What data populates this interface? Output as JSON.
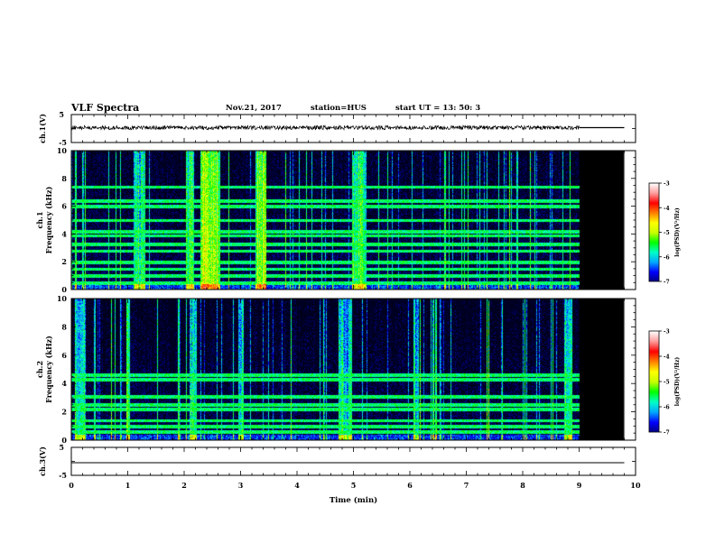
{
  "header": {
    "title": "VLF Spectra",
    "date": "Nov.21, 2017",
    "station": "station=HUS",
    "start": "start  UT =   13: 50: 3"
  },
  "chart_data": [
    {
      "type": "line",
      "panel": "ch1-waveform",
      "ylabel": "ch.1(V)",
      "ylim": [
        -5,
        5
      ],
      "yticks": [
        "5",
        "-5"
      ],
      "xlim": [
        0,
        10
      ],
      "noise_until_min": 9.0,
      "flat_until_min": 9.8,
      "approx_level_v": 0
    },
    {
      "type": "heatmap",
      "panel": "ch1-spectrogram",
      "ylabel": "ch.1\nFrequency (kHz)",
      "ylim": [
        0,
        10
      ],
      "yticks": [
        0,
        2,
        4,
        6,
        8,
        10
      ],
      "xlim": [
        0,
        10
      ],
      "data_until_min": 9.0,
      "end_min": 9.8,
      "colorbar": {
        "label": "log(PSD)(V²/Hz)",
        "range": [
          -7,
          -3
        ],
        "ticks": [
          "-3",
          "-4",
          "-5",
          "-6",
          "-7"
        ]
      },
      "horizontal_bands_khz": [
        0.5,
        1.0,
        1.5,
        2.0,
        2.8,
        3.3,
        3.9,
        4.2,
        5.0,
        6.0,
        6.4,
        7.4
      ],
      "strong_bursts_min": [
        {
          "center": 2.45,
          "width": 0.35,
          "level": -4.8
        },
        {
          "center": 3.35,
          "width": 0.2,
          "level": -5.0
        },
        {
          "center": 2.1,
          "width": 0.15,
          "level": -5.3
        },
        {
          "center": 5.1,
          "width": 0.25,
          "level": -5.3
        },
        {
          "center": 1.2,
          "width": 0.2,
          "level": -5.5
        }
      ]
    },
    {
      "type": "heatmap",
      "panel": "ch2-spectrogram",
      "ylabel": "ch.2\nFrequency (kHz)",
      "ylim": [
        0,
        10
      ],
      "yticks": [
        0,
        2,
        4,
        6,
        8,
        10
      ],
      "xlim": [
        0,
        10
      ],
      "data_until_min": 9.0,
      "end_min": 9.8,
      "colorbar": {
        "label": "log(PSD)(V²/Hz)",
        "range": [
          -7,
          -3
        ],
        "ticks": [
          "-3",
          "-4",
          "-5",
          "-6",
          "-7"
        ]
      },
      "horizontal_bands_khz": [
        0.6,
        1.0,
        1.4,
        2.2,
        2.5,
        3.1,
        4.3,
        4.6
      ],
      "strong_bursts_min": [
        {
          "center": 0.15,
          "width": 0.2,
          "level": -5.5
        },
        {
          "center": 1.0,
          "width": 0.08,
          "level": -5.3
        },
        {
          "center": 2.15,
          "width": 0.12,
          "level": -5.5
        },
        {
          "center": 3.0,
          "width": 0.1,
          "level": -5.6
        },
        {
          "center": 4.85,
          "width": 0.25,
          "level": -5.6
        },
        {
          "center": 6.1,
          "width": 0.1,
          "level": -5.6
        },
        {
          "center": 8.8,
          "width": 0.15,
          "level": -5.5
        }
      ]
    },
    {
      "type": "line",
      "panel": "ch3-waveform",
      "ylabel": "ch.3(V)",
      "ylim": [
        -5,
        5
      ],
      "yticks": [
        "5",
        "-5"
      ],
      "xlim": [
        0,
        10
      ],
      "flat_until_min": 9.8,
      "approx_level_v": 0
    }
  ],
  "x_axis": {
    "label": "Time (min)",
    "ticks": [
      "0",
      "1",
      "2",
      "3",
      "4",
      "5",
      "6",
      "7",
      "8",
      "9",
      "10"
    ]
  },
  "colors": {
    "colormap": [
      "#00007f",
      "#0000ff",
      "#00a8ff",
      "#00ffc8",
      "#00ff00",
      "#c8ff00",
      "#ffff00",
      "#ff8000",
      "#ff0000",
      "#ff9a9a",
      "#ffffff"
    ],
    "background": "#000000",
    "dark_band": "#000033"
  }
}
